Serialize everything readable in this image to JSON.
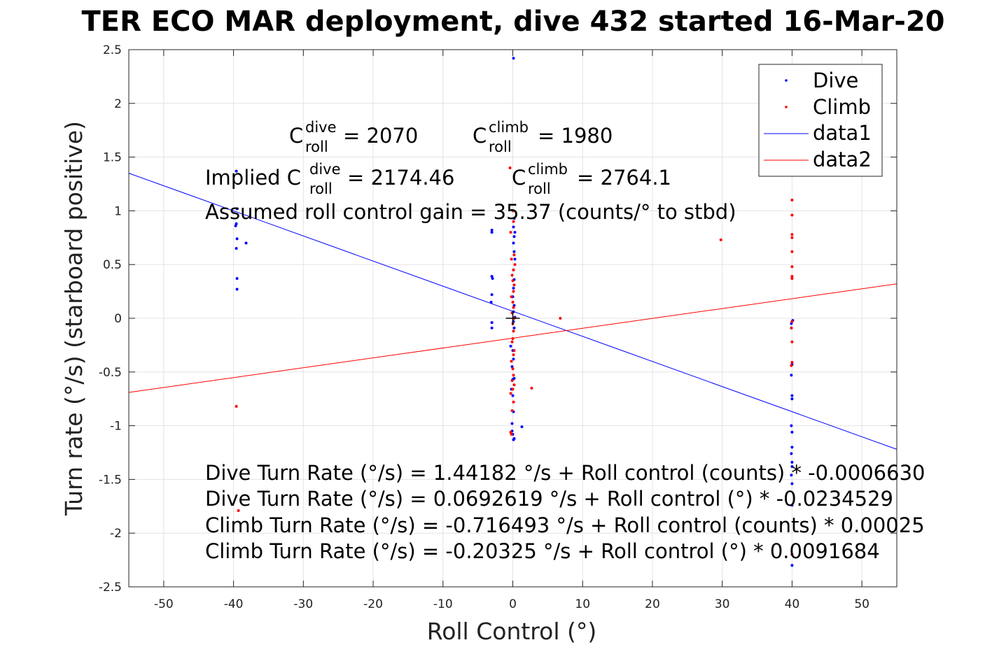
{
  "chart_data": {
    "type": "scatter",
    "title": "TER ECO MAR deployment, dive 432 started 16-Mar-20",
    "xlabel": "Roll Control (°)",
    "ylabel": "Turn rate (°/s) (starboard positive)",
    "xlim": [
      -55,
      55
    ],
    "ylim": [
      -2.5,
      2.5
    ],
    "xticks": [
      -50,
      -40,
      -30,
      -20,
      -10,
      0,
      10,
      20,
      30,
      40,
      50
    ],
    "yticks": [
      2.5,
      2,
      1.5,
      1,
      0.5,
      0,
      -0.5,
      -1,
      -1.5,
      -2,
      -2.5
    ],
    "grid": true,
    "legend_position": "top-right",
    "legend": [
      "Dive",
      "Climb",
      "data1",
      "data2"
    ],
    "colors": {
      "dive": "#0000ff",
      "climb": "#ff0000",
      "cross": "#000000"
    },
    "series": [
      {
        "name": "Dive",
        "kind": "points",
        "x": [
          0.1,
          -39.6,
          -39.5,
          -39.7,
          -39.6,
          -39.5,
          -38.2,
          -39.6,
          -39.5,
          -39.5,
          -3,
          -3,
          -3,
          -2.9,
          -3,
          -3.1,
          -3,
          -3,
          0.2,
          0.1,
          0.3,
          0.2,
          0.1,
          0.2,
          0.3,
          0.1,
          0.2,
          0.1,
          0,
          0.2,
          0.1,
          0.3,
          0.1,
          0.2,
          -0.3,
          0,
          0.1,
          -0.1,
          0.2,
          0,
          -0.2,
          0,
          0.1,
          -0.1,
          -0.1,
          0,
          0.2,
          0.1,
          1.3,
          39.9,
          40.1,
          39.9,
          40,
          39.9,
          40,
          40,
          39.9,
          40,
          40,
          39.9,
          40,
          40,
          39.9,
          40,
          40,
          40
        ],
        "y": [
          2.42,
          1.37,
          1.02,
          0.86,
          0.88,
          0.74,
          0.7,
          0.65,
          0.37,
          0.27,
          0.82,
          0.8,
          0.39,
          0.37,
          0.22,
          0.15,
          -0.04,
          -0.09,
          0.93,
          0.85,
          0.8,
          0.76,
          0.7,
          0.62,
          0.55,
          0.45,
          0.36,
          0.28,
          0.2,
          0.12,
          0.06,
          0.01,
          -0.03,
          -0.09,
          -0.26,
          -0.3,
          -0.38,
          -0.45,
          -0.56,
          -0.57,
          -0.66,
          -0.72,
          -0.87,
          -0.98,
          -1.05,
          -1.08,
          -1.12,
          -1.13,
          -1.01,
          -0.05,
          -0.02,
          -0.09,
          -0.43,
          -0.53,
          -0.72,
          -0.75,
          -1.0,
          -1.06,
          -1.2,
          -1.26,
          -1.34,
          -1.38,
          -1.46,
          -1.54,
          -1.74,
          -2.3
        ]
      },
      {
        "name": "Climb",
        "kind": "points",
        "x": [
          -0.4,
          -0.3,
          0,
          0.1,
          0.2,
          -0.2,
          0.3,
          0.1,
          -0.1,
          0,
          0.2,
          0.1,
          -0.2,
          0,
          0.1,
          -0.1,
          0.2,
          0,
          0.1,
          0,
          -0.1,
          0.2,
          0.1,
          -0.2,
          0,
          0.1,
          -0.1,
          0.2,
          0,
          -0.3,
          0.1,
          -0.1,
          -0.3,
          -0.2,
          6.8,
          2.7,
          29.8,
          -39.6,
          -39.3,
          40,
          40,
          40,
          40,
          40,
          40,
          40,
          40,
          40,
          39.9,
          40,
          40,
          39.9,
          40
        ],
        "y": [
          1.4,
          0.8,
          1.0,
          0.9,
          0.59,
          0.55,
          0.5,
          0.45,
          0.4,
          0.35,
          0.31,
          0.25,
          0.2,
          0.15,
          0.1,
          0.05,
          0.0,
          -0.05,
          -0.12,
          -0.19,
          -0.22,
          -0.3,
          -0.34,
          -0.4,
          -0.47,
          -0.53,
          -0.58,
          -0.62,
          -0.66,
          -0.7,
          -0.78,
          -0.86,
          -1.06,
          -1.08,
          0.0,
          -0.65,
          0.73,
          -0.82,
          -1.79,
          1.1,
          0.96,
          0.78,
          0.75,
          0.62,
          0.48,
          0.39,
          0.37,
          -0.03,
          -0.09,
          -0.22,
          -0.41,
          -0.44,
          -2.2
        ]
      },
      {
        "name": "data1",
        "kind": "line",
        "x": [
          -55,
          55
        ],
        "y": [
          1.35,
          -1.22
        ]
      },
      {
        "name": "data2",
        "kind": "line",
        "x": [
          -55,
          55
        ],
        "y": [
          -0.69,
          0.32
        ]
      }
    ],
    "center_marker": {
      "x": 0,
      "y": 0
    },
    "annotations": {
      "line1": {
        "c_dive_base": "C",
        "c_dive_sup": "dive",
        "c_dive_sub": "roll",
        "c_dive_value": " = 2070",
        "c_climb_base": "C",
        "c_climb_sup": "climb",
        "c_climb_sub": "roll",
        "c_climb_value": " = 1980"
      },
      "line2": {
        "implied_prefix": "Implied C",
        "implied_dive_sup": "dive",
        "implied_dive_sub": "roll",
        "implied_dive_value": " = 2174.46",
        "implied_climb_base": "C",
        "implied_climb_sup": "climb",
        "implied_climb_sub": "roll",
        "implied_climb_value": " = 2764.1"
      },
      "gain": "Assumed roll control gain = 35.37 (counts/° to stbd)",
      "equations": [
        "Dive Turn Rate (°/s) = 1.44182 °/s + Roll control (counts) * -0.0006630",
        "Dive Turn Rate (°/s) = 0.0692619 °/s + Roll control (°) * -0.0234529",
        "Climb Turn Rate (°/s) = -0.716493 °/s + Roll control (counts) * 0.00025",
        "Climb Turn Rate (°/s) = -0.20325 °/s + Roll control (°) * 0.0091684"
      ]
    }
  }
}
